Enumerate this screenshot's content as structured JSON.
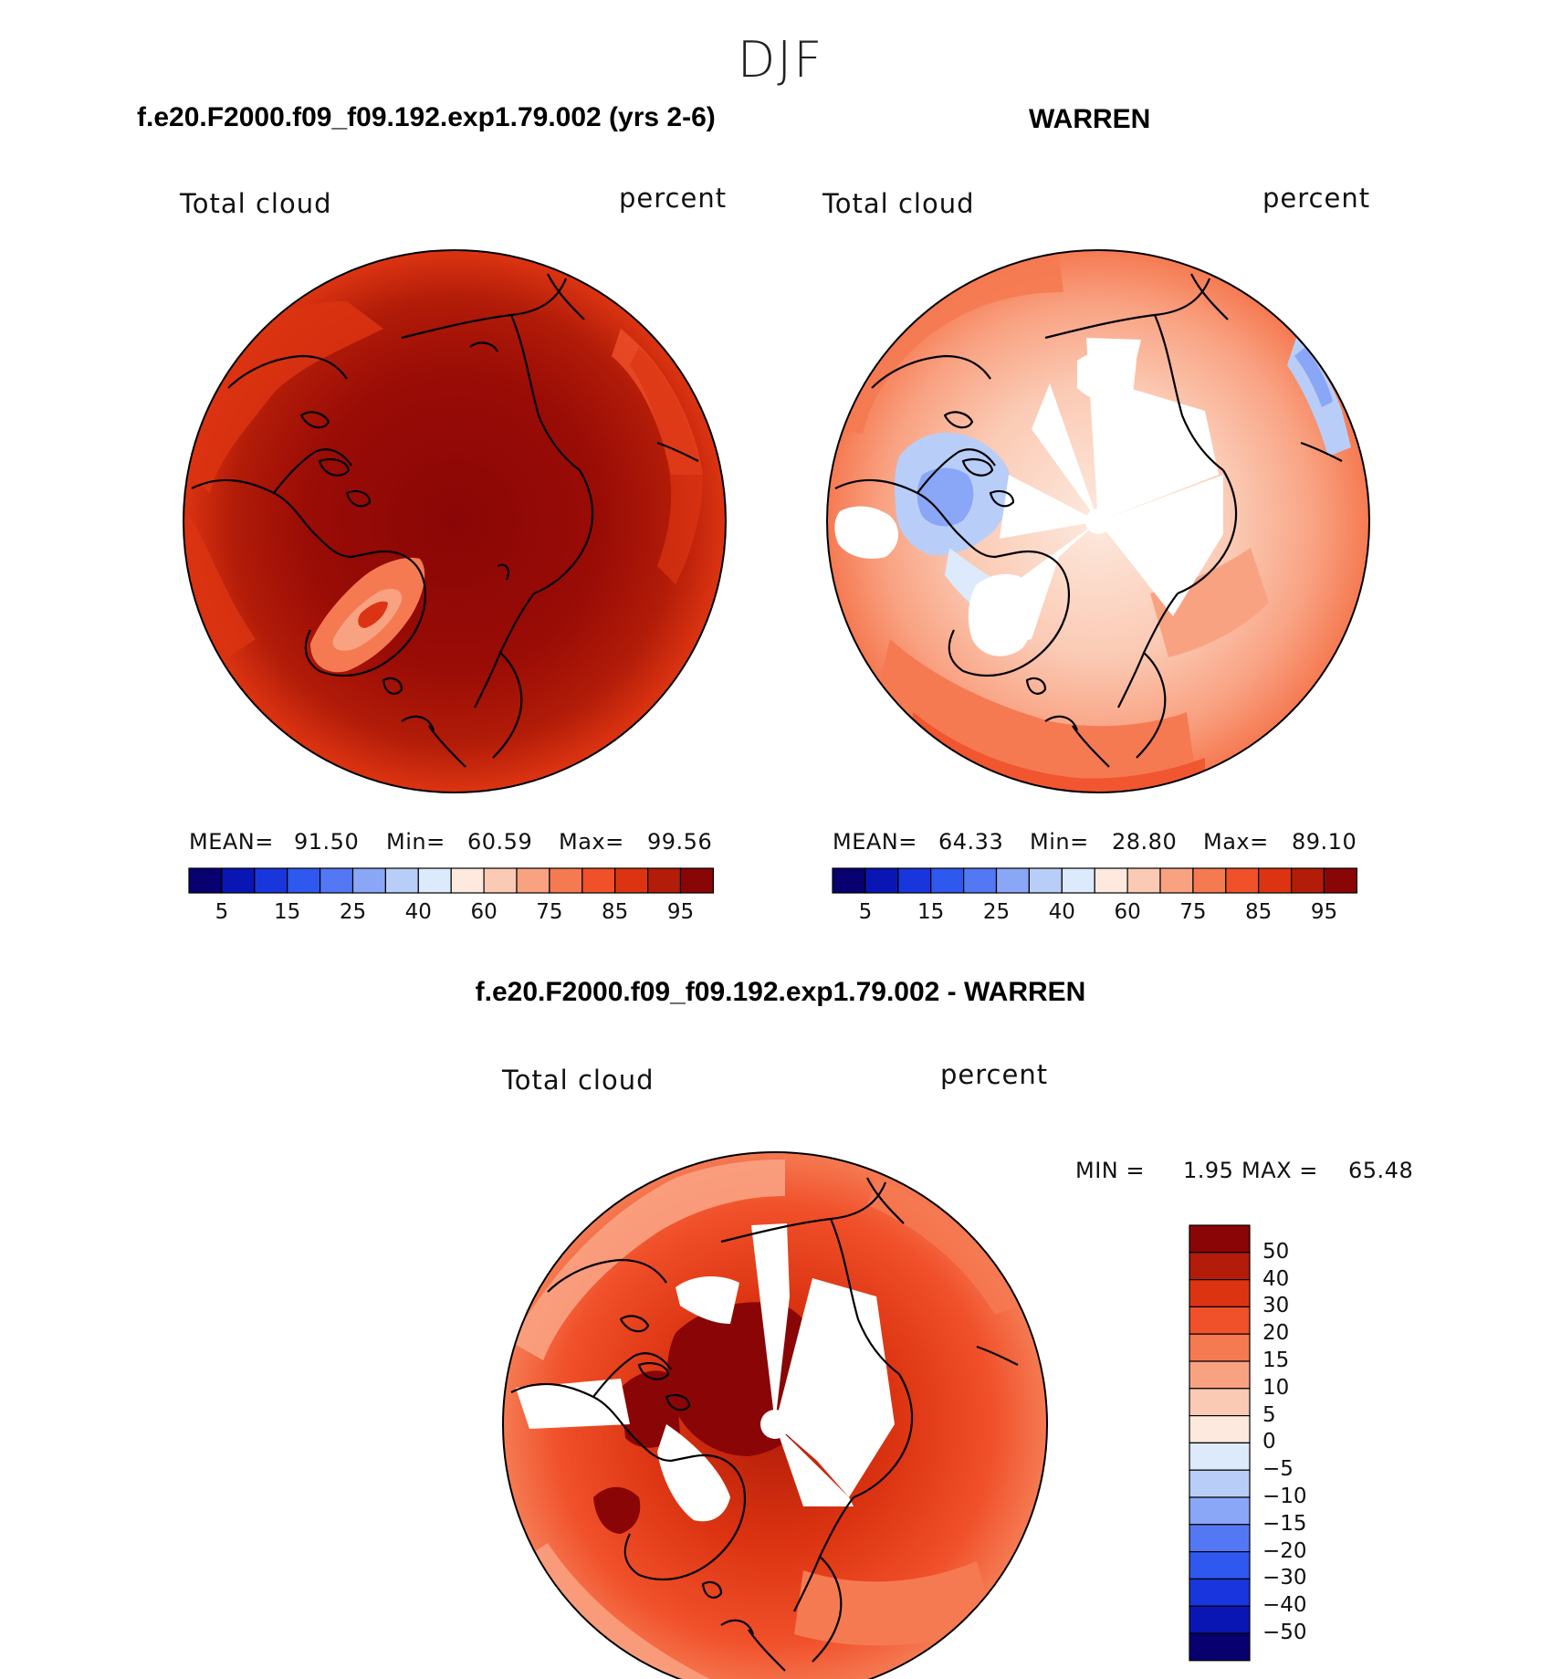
{
  "figure": {
    "season": "DJF",
    "panels": [
      {
        "title": "f.e20.F2000.f09_f09.192.exp1.79.002 (yrs 2-6)",
        "variable": "Total cloud",
        "units": "percent",
        "stats": {
          "mean_label": "MEAN=",
          "mean": "91.50",
          "min_label": "Min=",
          "min": "60.59",
          "max_label": "Max=",
          "max": "99.56"
        },
        "colorbar": {
          "ticks": [
            "5",
            "15",
            "25",
            "40",
            "60",
            "75",
            "85",
            "95"
          ]
        }
      },
      {
        "title": "WARREN",
        "variable": "Total cloud",
        "units": "percent",
        "stats": {
          "mean_label": "MEAN=",
          "mean": "64.33",
          "min_label": "Min=",
          "min": "28.80",
          "max_label": "Max=",
          "max": "89.10"
        },
        "colorbar": {
          "ticks": [
            "5",
            "15",
            "25",
            "40",
            "60",
            "75",
            "85",
            "95"
          ]
        }
      }
    ],
    "diff": {
      "title": "f.e20.F2000.f09_f09.192.exp1.79.002 - WARREN",
      "variable": "Total cloud",
      "units": "percent",
      "stats": {
        "min_label": "MIN =",
        "min": "1.95",
        "max_label": "MAX =",
        "max": "65.48"
      },
      "colorbar": {
        "ticks": [
          "50",
          "40",
          "30",
          "20",
          "15",
          "10",
          "5",
          "0",
          "−5",
          "−10",
          "−15",
          "−20",
          "−30",
          "−40",
          "−50"
        ]
      }
    }
  },
  "colors": {
    "abs_scale": [
      "#08006e",
      "#0a16b4",
      "#1836dc",
      "#2e58ee",
      "#5478f4",
      "#8aa6f6",
      "#b8cef8",
      "#dceafc",
      "#fde9de",
      "#fbcab4",
      "#f9a282",
      "#f57a52",
      "#f0502a",
      "#dc3412",
      "#b21c08",
      "#8a0606"
    ],
    "diff_scale": [
      "#8a0606",
      "#b21c08",
      "#dc3412",
      "#f0502a",
      "#f57a52",
      "#f9a282",
      "#fbcab4",
      "#fde9de",
      "#dceafc",
      "#b8cef8",
      "#8aa6f6",
      "#5478f4",
      "#2e58ee",
      "#1836dc",
      "#0a16b4",
      "#08006e"
    ]
  }
}
